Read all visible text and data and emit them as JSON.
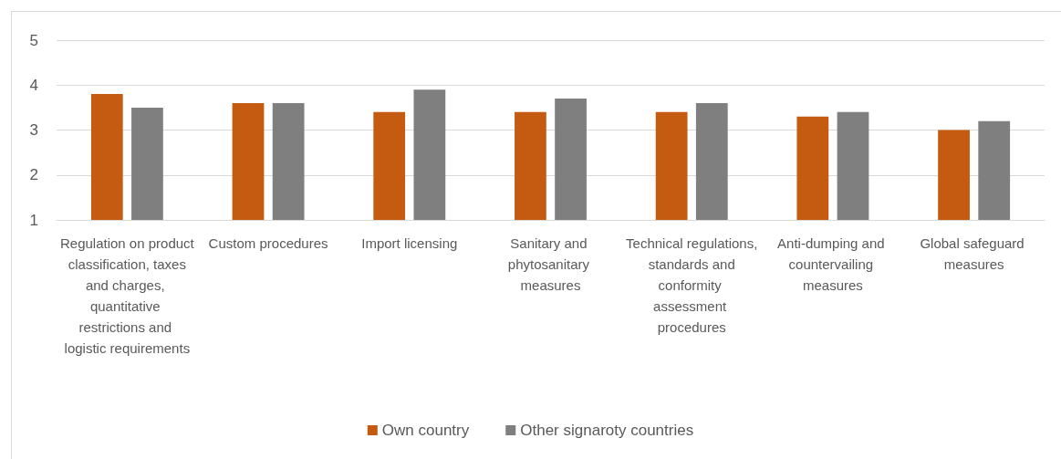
{
  "chart_data": {
    "type": "bar",
    "categories": [
      "Regulation on product classification, taxes and charges, quantitative restrictions and logistic requirements",
      "Custom procedures",
      "Import licensing",
      "Sanitary and phytosanitary measures",
      "Technical regulations, standards and conformity assessment procedures",
      "Anti-dumping and countervailing measures",
      "Global safeguard measures"
    ],
    "series": [
      {
        "name": "Own country",
        "color": "#c55a11",
        "values": [
          3.8,
          3.6,
          3.4,
          3.4,
          3.4,
          3.3,
          3.0
        ]
      },
      {
        "name": "Other signaroty countries",
        "color": "#7f7f7f",
        "values": [
          3.5,
          3.6,
          3.9,
          3.7,
          3.6,
          3.4,
          3.2
        ]
      }
    ],
    "ylim": [
      1,
      5
    ],
    "yticks": [
      1,
      2,
      3,
      4,
      5
    ],
    "grid": "y",
    "legend": "bottom"
  }
}
